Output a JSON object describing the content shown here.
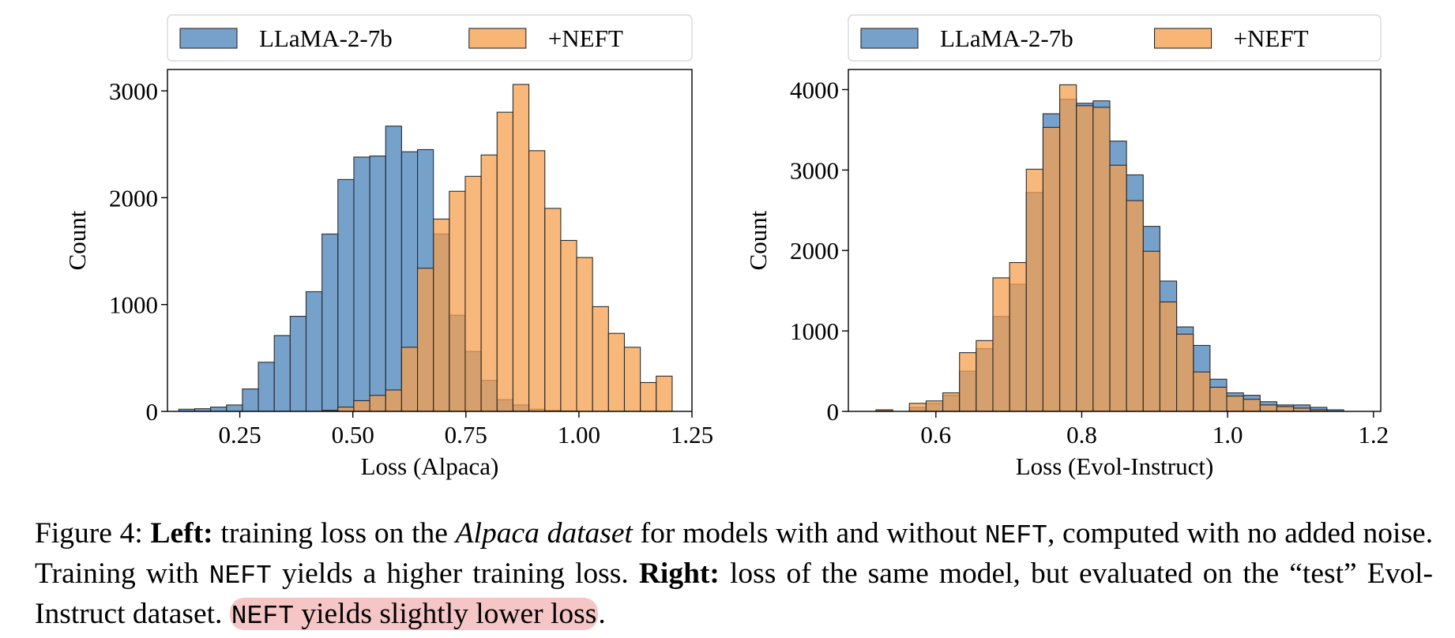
{
  "chart_data": [
    {
      "type": "bar",
      "subtype": "overlapping-histogram",
      "xlabel": "Loss (Alpaca)",
      "ylabel": "Count",
      "xlim": [
        0.09,
        1.25
      ],
      "ylim": [
        0,
        3200
      ],
      "xticks": [
        0.25,
        0.5,
        0.75,
        1.0,
        1.25
      ],
      "xtick_labels": [
        "0.25",
        "0.50",
        "0.75",
        "1.00",
        "1.25"
      ],
      "yticks": [
        0,
        1000,
        2000,
        3000
      ],
      "ytick_labels": [
        "0",
        "1000",
        "2000",
        "3000"
      ],
      "legend_position": "above",
      "bin_start": 0.115,
      "bin_width": 0.0352,
      "series": [
        {
          "name": "LLaMA-2-7b",
          "color": "#4f87bd",
          "values": [
            20,
            25,
            40,
            60,
            210,
            460,
            710,
            890,
            1120,
            1660,
            2170,
            2380,
            2390,
            2670,
            2430,
            2450,
            1660,
            900,
            560,
            290,
            110,
            60,
            20,
            10,
            5,
            0,
            0,
            0,
            0,
            0,
            0,
            0
          ]
        },
        {
          "name": "+NEFT",
          "color": "#f5a04f",
          "values": [
            0,
            0,
            0,
            0,
            0,
            0,
            0,
            0,
            0,
            10,
            40,
            100,
            150,
            200,
            600,
            1340,
            1800,
            2060,
            2200,
            2400,
            2800,
            3060,
            2440,
            1900,
            1600,
            1440,
            980,
            730,
            600,
            270,
            330,
            0
          ]
        }
      ]
    },
    {
      "type": "bar",
      "subtype": "overlapping-histogram",
      "xlabel": "Loss (Evol-Instruct)",
      "ylabel": "Count",
      "xlim": [
        0.48,
        1.21
      ],
      "ylim": [
        0,
        4250
      ],
      "xticks": [
        0.6,
        0.8,
        1.0,
        1.2
      ],
      "xtick_labels": [
        "0.6",
        "0.8",
        "1.0",
        "1.2"
      ],
      "yticks": [
        0,
        1000,
        2000,
        3000,
        4000
      ],
      "ytick_labels": [
        "0",
        "1000",
        "2000",
        "3000",
        "4000"
      ],
      "legend_position": "above",
      "bin_start": 0.495,
      "bin_width": 0.0229,
      "series": [
        {
          "name": "LLaMA-2-7b",
          "color": "#4f87bd",
          "values": [
            0,
            10,
            0,
            50,
            100,
            200,
            500,
            780,
            1180,
            1580,
            2720,
            3700,
            3880,
            3830,
            3860,
            3360,
            2940,
            2300,
            1620,
            1050,
            820,
            400,
            230,
            200,
            120,
            80,
            80,
            50,
            20
          ]
        },
        {
          "name": "+NEFT",
          "color": "#f5a04f",
          "values": [
            0,
            20,
            0,
            100,
            130,
            230,
            730,
            880,
            1660,
            1850,
            3010,
            3530,
            4060,
            3800,
            3780,
            3060,
            2620,
            1990,
            1360,
            960,
            490,
            300,
            190,
            150,
            80,
            60,
            40,
            20,
            0
          ]
        }
      ]
    }
  ],
  "caption": {
    "figure_label": "Figure 4:",
    "left_bold": "Left:",
    "part1": "training loss on the",
    "dataset_italic": "Alpaca dataset",
    "part2": "for models with and without",
    "neft_1": "NEFT",
    "part3": ", computed with no added noise. Training with",
    "neft_2": "NEFT",
    "part4": "yields a higher training loss.",
    "right_bold": "Right:",
    "part5": "loss of the same model, but evaluated on the “test” Evol-Instruct dataset.",
    "neft_3": "NEFT",
    "highlight_rest": "yields slightly lower loss",
    "end": ".",
    "highlight_color": "#f6c5c5"
  }
}
